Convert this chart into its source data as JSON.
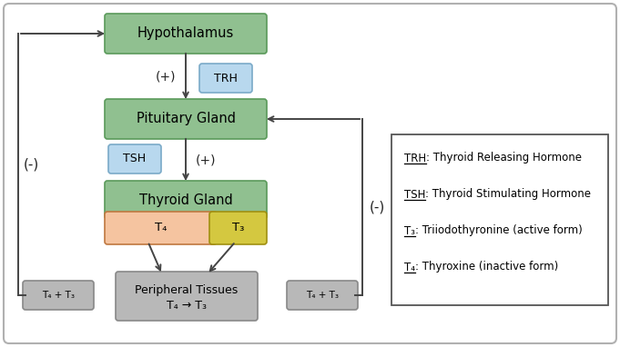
{
  "box_green": "#90c090",
  "box_green_edge": "#5a9a5a",
  "box_blue": "#b8d8ee",
  "box_blue_edge": "#7aaac8",
  "box_gray": "#b8b8b8",
  "box_gray_edge": "#888888",
  "box_orange": "#f5c4a0",
  "box_orange_edge": "#c07840",
  "box_yellow": "#d4c840",
  "box_yellow_edge": "#a09010",
  "outer_border_color": "#b0b0b0",
  "arrow_color": "#444444",
  "text_dark": "#222222",
  "hypothalamus_label": "Hypothalamus",
  "pituitary_label": "Pituitary Gland",
  "thyroid_label": "Thyroid Gland",
  "peripheral_line1": "Peripheral Tissues",
  "peripheral_line2": "T₄ → T₃",
  "trh_label": "TRH",
  "tsh_label": "TSH",
  "t4_label": "T₄",
  "t3_label": "T₃",
  "t4t3_label": "T₄ + T₃",
  "plus_label": "(+)",
  "minus_label": "(-)",
  "legend_entries": [
    {
      "abbr": "TRH",
      "colon": ":",
      "rest": " Thyroid Releasing Hormone"
    },
    {
      "abbr": "TSH",
      "colon": ":",
      "rest": " Thyroid Stimulating Hormone"
    },
    {
      "abbr": "T₃",
      "colon": ":",
      "rest": " Triiodothyronine (active form)"
    },
    {
      "abbr": "T₄",
      "colon": ":",
      "rest": " Thyroxine (inactive form)"
    }
  ],
  "figsize": [
    6.81,
    3.82
  ],
  "dpi": 100
}
